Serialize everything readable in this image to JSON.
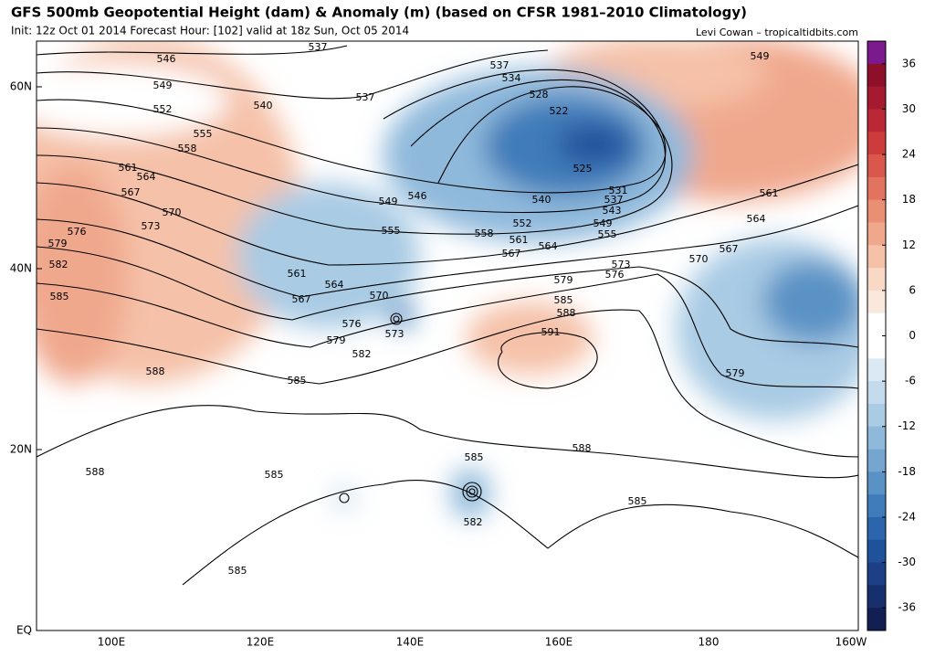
{
  "header": {
    "title": "GFS 500mb Geopotential Height (dam) & Anomaly (m) (based on CFSR 1981–2010 Climatology)",
    "subtitle": "Init: 12z Oct 01 2014 Forecast Hour: [102] valid at 18z Sun, Oct 05 2014",
    "credit": "Levi Cowan – tropicaltidbits.com"
  },
  "axes": {
    "lat_labels": [
      "60N",
      "40N",
      "20N",
      "EQ"
    ],
    "lon_labels": [
      "100E",
      "120E",
      "140E",
      "160E",
      "180",
      "160W"
    ]
  },
  "colorbar": {
    "ticks": [
      36,
      30,
      24,
      18,
      12,
      6,
      0,
      -6,
      -12,
      -18,
      -24,
      -30,
      -36
    ],
    "lim": [
      39,
      -39
    ],
    "colors": [
      "#7b1a8c",
      "#8e0f2a",
      "#a51a2e",
      "#bb2835",
      "#cc3c3c",
      "#d9574b",
      "#e2735f",
      "#ea8e74",
      "#f0a88d",
      "#f5c1a8",
      "#f9d8c6",
      "#fbe8dc",
      "#ffffff",
      "#ffffff",
      "#dbe9f4",
      "#c3dbed",
      "#a9cbe4",
      "#8fb9db",
      "#74a6d0",
      "#5a92c5",
      "#3f7cb9",
      "#2b66ac",
      "#20519b",
      "#1c3f86",
      "#182f6e",
      "#121f53"
    ]
  },
  "contour_labels": [
    546,
    549,
    552,
    555,
    558,
    561,
    564,
    567,
    570,
    573,
    576,
    579,
    582,
    585,
    588,
    537,
    537,
    534,
    540,
    537,
    528,
    522,
    525,
    531,
    537,
    543,
    549,
    555,
    540,
    546,
    549,
    552,
    555,
    558,
    561,
    564,
    567,
    570,
    573,
    576,
    579,
    561,
    564,
    567,
    549,
    585,
    588,
    591,
    588,
    585,
    582,
    585,
    579,
    561,
    564,
    567,
    570,
    576,
    573,
    579,
    582,
    585,
    588,
    585,
    585
  ]
}
